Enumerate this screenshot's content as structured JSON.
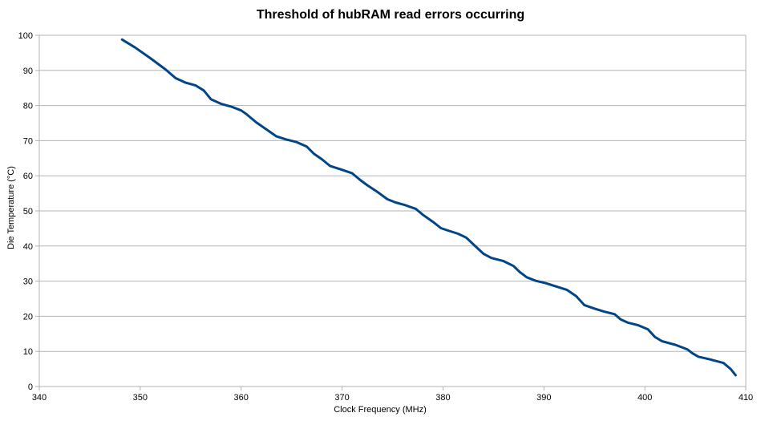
{
  "chart_data": {
    "type": "line",
    "title": "Threshold of hubRAM read errors occurring",
    "xlabel": "Clock Frequency (MHz)",
    "ylabel": "Die Temperature (°C)",
    "xlim": [
      340,
      410
    ],
    "ylim": [
      0,
      100
    ],
    "x_ticks": [
      340,
      350,
      360,
      370,
      380,
      390,
      400,
      410
    ],
    "y_ticks": [
      0,
      10,
      20,
      30,
      40,
      50,
      60,
      70,
      80,
      90,
      100
    ],
    "grid": true,
    "legend": "none",
    "series_color": "#004586",
    "series": [
      {
        "x": [
          348.2,
          349.5,
          351.0,
          352.5,
          353.5,
          354.5,
          355.5,
          356.3,
          357.0,
          358.0,
          359.0,
          360.0,
          360.5,
          361.5,
          362.5,
          363.5,
          364.5,
          365.5,
          366.5,
          367.2,
          368.0,
          368.8,
          369.8,
          371.0,
          371.8,
          372.5,
          373.5,
          374.5,
          375.3,
          376.2,
          377.3,
          378.0,
          379.0,
          379.8,
          380.5,
          381.5,
          382.3,
          383.0,
          384.0,
          384.8,
          386.0,
          387.0,
          387.6,
          388.3,
          389.2,
          390.2,
          391.2,
          392.3,
          393.2,
          394.0,
          395.0,
          396.0,
          397.0,
          397.6,
          398.3,
          399.3,
          400.3,
          401.0,
          401.7,
          403.0,
          404.2,
          404.7,
          405.3,
          406.5,
          407.8,
          408.5,
          409.0
        ],
        "y": [
          98.8,
          96.5,
          93.5,
          90.3,
          87.8,
          86.5,
          85.7,
          84.3,
          81.8,
          80.5,
          79.7,
          78.6,
          77.6,
          75.2,
          73.2,
          71.2,
          70.3,
          69.6,
          68.3,
          66.3,
          64.7,
          62.8,
          61.9,
          60.7,
          58.8,
          57.3,
          55.4,
          53.3,
          52.4,
          51.7,
          50.6,
          48.9,
          46.9,
          45.1,
          44.4,
          43.5,
          42.4,
          40.5,
          37.8,
          36.6,
          35.7,
          34.3,
          32.6,
          31.1,
          30.1,
          29.4,
          28.5,
          27.5,
          25.7,
          23.2,
          22.2,
          21.3,
          20.6,
          19.1,
          18.2,
          17.5,
          16.3,
          14.1,
          12.9,
          11.9,
          10.6,
          9.5,
          8.5,
          7.7,
          6.7,
          5.0,
          3.2
        ]
      }
    ]
  }
}
